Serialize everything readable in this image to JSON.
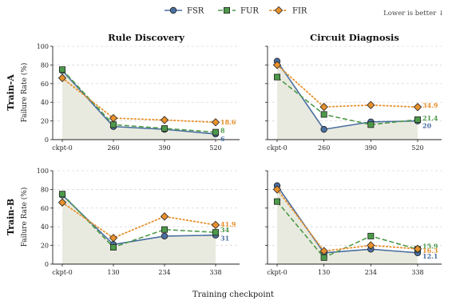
{
  "header": {
    "note": "Lower is better ↓"
  },
  "colors": {
    "FSR": "#4a6fa0",
    "FUR": "#4d9a4a",
    "FIR": "#e8912d",
    "fill": "#e9eadf",
    "grid": "#cccccc"
  },
  "legend": [
    {
      "name": "FSR",
      "marker": "circle",
      "dash": "solid"
    },
    {
      "name": "FUR",
      "marker": "square",
      "dash": "dashed"
    },
    {
      "name": "FIR",
      "marker": "diamond",
      "dash": "dotted"
    }
  ],
  "xlabel": "Training checkpoint",
  "ylabel": "Failure Rate (%)",
  "rows": [
    "Train-A",
    "Train-B"
  ],
  "cols": [
    "Rule Discovery",
    "Circuit Diagnosis"
  ],
  "chart_data": [
    {
      "type": "line",
      "row": "Train-A",
      "title": "Rule Discovery",
      "categories": [
        "ckpt-0",
        "260",
        "390",
        "520"
      ],
      "ylim": [
        0,
        100
      ],
      "yticks": [
        0,
        20,
        40,
        60,
        80,
        100
      ],
      "series": [
        {
          "name": "FSR",
          "values": [
            74,
            14,
            11,
            6
          ],
          "end_label": "6"
        },
        {
          "name": "FUR",
          "values": [
            75,
            16,
            12,
            8
          ],
          "end_label": "8"
        },
        {
          "name": "FIR",
          "values": [
            66,
            23,
            21,
            18.6
          ],
          "end_label": "18.6"
        }
      ]
    },
    {
      "type": "line",
      "row": "Train-A",
      "title": "Circuit Diagnosis",
      "categories": [
        "ckpt-0",
        "260",
        "390",
        "520"
      ],
      "ylim": [
        0,
        100
      ],
      "yticks": [
        0,
        20,
        40,
        60,
        80,
        100
      ],
      "series": [
        {
          "name": "FSR",
          "values": [
            84,
            11,
            19,
            20
          ],
          "end_label": "20"
        },
        {
          "name": "FUR",
          "values": [
            67,
            27,
            16,
            21.4
          ],
          "end_label": "21.4"
        },
        {
          "name": "FIR",
          "values": [
            80,
            35,
            37,
            34.9
          ],
          "end_label": "34.9"
        }
      ]
    },
    {
      "type": "line",
      "row": "Train-B",
      "title": "",
      "categories": [
        "ckpt-0",
        "130",
        "234",
        "338"
      ],
      "ylim": [
        0,
        100
      ],
      "yticks": [
        0,
        20,
        40,
        60,
        80,
        100
      ],
      "series": [
        {
          "name": "FSR",
          "values": [
            74,
            21,
            30,
            31
          ],
          "end_label": "31"
        },
        {
          "name": "FUR",
          "values": [
            75,
            18,
            37,
            34
          ],
          "end_label": "34"
        },
        {
          "name": "FIR",
          "values": [
            66,
            28,
            51,
            41.9
          ],
          "end_label": "41.9"
        }
      ]
    },
    {
      "type": "line",
      "row": "Train-B",
      "title": "",
      "categories": [
        "ckpt-0",
        "130",
        "234",
        "338"
      ],
      "ylim": [
        0,
        100
      ],
      "yticks": [
        0,
        20,
        40,
        60,
        80,
        100
      ],
      "series": [
        {
          "name": "FSR",
          "values": [
            84,
            12,
            16,
            12.1
          ],
          "end_label": "12.1"
        },
        {
          "name": "FUR",
          "values": [
            67,
            7,
            30,
            15.9
          ],
          "end_label": "15.9"
        },
        {
          "name": "FIR",
          "values": [
            80,
            14,
            20,
            16.3
          ],
          "end_label": "16.3"
        }
      ]
    }
  ]
}
